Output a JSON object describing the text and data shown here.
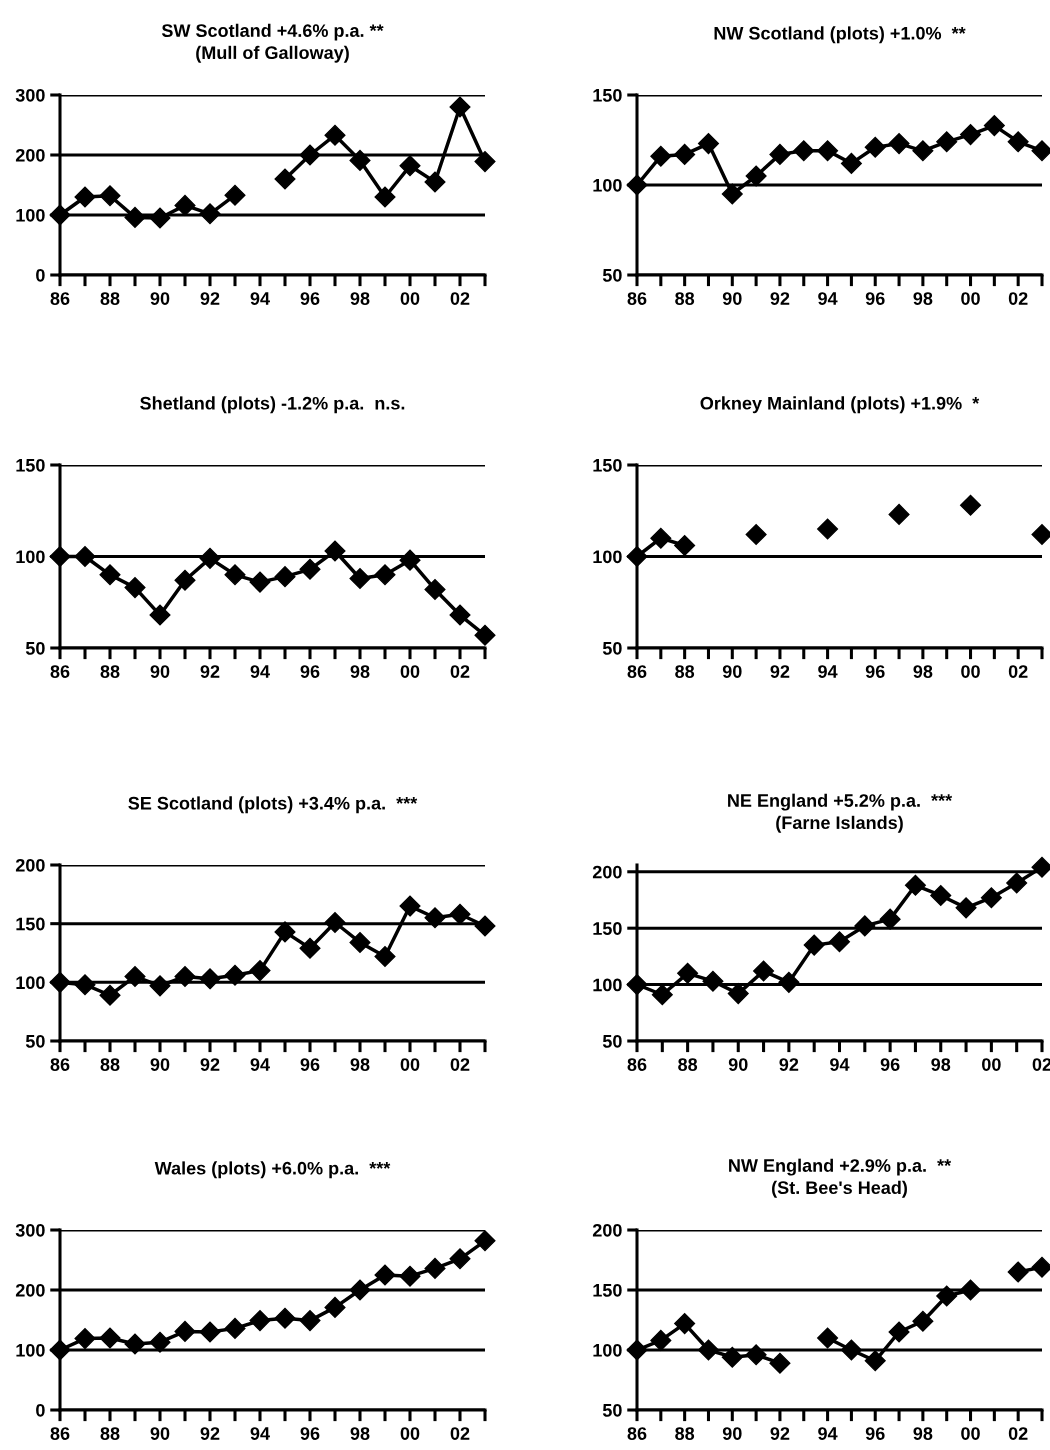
{
  "chart_data": [
    {
      "type": "line",
      "title": "SW Scotland +4.6% p.a. **\n(Mull of Galloway)",
      "x": [
        1986,
        1987,
        1988,
        1989,
        1990,
        1991,
        1992,
        1993,
        1994,
        1995,
        1996,
        1997,
        1998,
        1999,
        2000,
        2001,
        2002,
        2003
      ],
      "series": [
        {
          "color": "#000000",
          "values": [
            100,
            130,
            132,
            96,
            95,
            116,
            102,
            133,
            null,
            160,
            200,
            233,
            191,
            130,
            182,
            155,
            280,
            189
          ]
        }
      ],
      "xlim": [
        1986,
        2003
      ],
      "xticks": [
        {
          "value": 1986,
          "label": "86"
        },
        {
          "value": 1987,
          "label": null
        },
        {
          "value": 1988,
          "label": "88"
        },
        {
          "value": 1989,
          "label": null
        },
        {
          "value": 1990,
          "label": "90"
        },
        {
          "value": 1991,
          "label": null
        },
        {
          "value": 1992,
          "label": "92"
        },
        {
          "value": 1993,
          "label": null
        },
        {
          "value": 1994,
          "label": "94"
        },
        {
          "value": 1995,
          "label": null
        },
        {
          "value": 1996,
          "label": "96"
        },
        {
          "value": 1997,
          "label": null
        },
        {
          "value": 1998,
          "label": "98"
        },
        {
          "value": 1999,
          "label": null
        },
        {
          "value": 2000,
          "label": "00"
        },
        {
          "value": 2001,
          "label": null
        },
        {
          "value": 2002,
          "label": "02"
        },
        {
          "value": 2003,
          "label": null
        }
      ],
      "ylim": [
        0,
        300
      ],
      "yticks": [
        0,
        100,
        200,
        300
      ],
      "grid": "y",
      "marker": "diamond",
      "line_style": "solid"
    },
    {
      "type": "line",
      "title": "NW Scotland (plots) +1.0%  **",
      "x": [
        1986,
        1987,
        1988,
        1989,
        1990,
        1991,
        1992,
        1993,
        1994,
        1995,
        1996,
        1997,
        1998,
        1999,
        2000,
        2001,
        2002,
        2003
      ],
      "series": [
        {
          "color": "#000000",
          "values": [
            100,
            116,
            117,
            123,
            95,
            105,
            117,
            119,
            119,
            112,
            121,
            123,
            119,
            124,
            128,
            133,
            124,
            119
          ]
        }
      ],
      "xlim": [
        1986,
        2003
      ],
      "xticks": [
        {
          "value": 1986,
          "label": "86"
        },
        {
          "value": 1987,
          "label": null
        },
        {
          "value": 1988,
          "label": "88"
        },
        {
          "value": 1989,
          "label": null
        },
        {
          "value": 1990,
          "label": "90"
        },
        {
          "value": 1991,
          "label": null
        },
        {
          "value": 1992,
          "label": "92"
        },
        {
          "value": 1993,
          "label": null
        },
        {
          "value": 1994,
          "label": "94"
        },
        {
          "value": 1995,
          "label": null
        },
        {
          "value": 1996,
          "label": "96"
        },
        {
          "value": 1997,
          "label": null
        },
        {
          "value": 1998,
          "label": "98"
        },
        {
          "value": 1999,
          "label": null
        },
        {
          "value": 2000,
          "label": "00"
        },
        {
          "value": 2001,
          "label": null
        },
        {
          "value": 2002,
          "label": "02"
        },
        {
          "value": 2003,
          "label": null
        }
      ],
      "ylim": [
        50,
        150
      ],
      "yticks": [
        50,
        100,
        150
      ],
      "grid": "y",
      "marker": "diamond",
      "line_style": "solid"
    },
    {
      "type": "line",
      "title": "Shetland (plots) -1.2% p.a.  n.s.",
      "x": [
        1986,
        1987,
        1988,
        1989,
        1990,
        1991,
        1992,
        1993,
        1994,
        1995,
        1996,
        1997,
        1998,
        1999,
        2000,
        2001,
        2002,
        2003
      ],
      "series": [
        {
          "color": "#000000",
          "values": [
            100,
            100,
            90,
            83,
            68,
            87,
            99,
            90,
            86,
            89,
            93,
            103,
            88,
            90,
            98,
            82,
            68,
            57
          ]
        }
      ],
      "xlim": [
        1986,
        2003
      ],
      "xticks": [
        {
          "value": 1986,
          "label": "86"
        },
        {
          "value": 1987,
          "label": null
        },
        {
          "value": 1988,
          "label": "88"
        },
        {
          "value": 1989,
          "label": null
        },
        {
          "value": 1990,
          "label": "90"
        },
        {
          "value": 1991,
          "label": null
        },
        {
          "value": 1992,
          "label": "92"
        },
        {
          "value": 1993,
          "label": null
        },
        {
          "value": 1994,
          "label": "94"
        },
        {
          "value": 1995,
          "label": null
        },
        {
          "value": 1996,
          "label": "96"
        },
        {
          "value": 1997,
          "label": null
        },
        {
          "value": 1998,
          "label": "98"
        },
        {
          "value": 1999,
          "label": null
        },
        {
          "value": 2000,
          "label": "00"
        },
        {
          "value": 2001,
          "label": null
        },
        {
          "value": 2002,
          "label": "02"
        },
        {
          "value": 2003,
          "label": null
        }
      ],
      "ylim": [
        50,
        150
      ],
      "yticks": [
        50,
        100,
        150
      ],
      "grid": "y",
      "marker": "diamond",
      "line_style": "solid"
    },
    {
      "type": "line",
      "title": "Orkney Mainland (plots) +1.9%  *",
      "x": [
        1986,
        1987,
        1988,
        1989,
        1990,
        1991,
        1992,
        1993,
        1994,
        1995,
        1996,
        1997,
        1998,
        1999,
        2000,
        2001,
        2002,
        2003
      ],
      "series": [
        {
          "color": "#000000",
          "values": [
            100,
            110,
            106,
            null,
            null,
            112,
            null,
            null,
            115,
            null,
            null,
            123,
            null,
            null,
            128,
            null,
            null,
            112
          ]
        }
      ],
      "xlim": [
        1986,
        2003
      ],
      "xticks": [
        {
          "value": 1986,
          "label": "86"
        },
        {
          "value": 1987,
          "label": null
        },
        {
          "value": 1988,
          "label": "88"
        },
        {
          "value": 1989,
          "label": null
        },
        {
          "value": 1990,
          "label": "90"
        },
        {
          "value": 1991,
          "label": null
        },
        {
          "value": 1992,
          "label": "92"
        },
        {
          "value": 1993,
          "label": null
        },
        {
          "value": 1994,
          "label": "94"
        },
        {
          "value": 1995,
          "label": null
        },
        {
          "value": 1996,
          "label": "96"
        },
        {
          "value": 1997,
          "label": null
        },
        {
          "value": 1998,
          "label": "98"
        },
        {
          "value": 1999,
          "label": null
        },
        {
          "value": 2000,
          "label": "00"
        },
        {
          "value": 2001,
          "label": null
        },
        {
          "value": 2002,
          "label": "02"
        },
        {
          "value": 2003,
          "label": null
        }
      ],
      "ylim": [
        50,
        150
      ],
      "yticks": [
        50,
        100,
        150
      ],
      "grid": "y",
      "marker": "diamond",
      "line_style": "solid"
    },
    {
      "type": "line",
      "title": "SE Scotland (plots) +3.4% p.a.  ***",
      "x": [
        1986,
        1987,
        1988,
        1989,
        1990,
        1991,
        1992,
        1993,
        1994,
        1995,
        1996,
        1997,
        1998,
        1999,
        2000,
        2001,
        2002,
        2003
      ],
      "series": [
        {
          "color": "#000000",
          "values": [
            100,
            98,
            89,
            105,
            97,
            105,
            103,
            106,
            110,
            143,
            129,
            151,
            134,
            122,
            165,
            155,
            158,
            148
          ]
        }
      ],
      "xlim": [
        1986,
        2003
      ],
      "xticks": [
        {
          "value": 1986,
          "label": "86"
        },
        {
          "value": 1987,
          "label": null
        },
        {
          "value": 1988,
          "label": "88"
        },
        {
          "value": 1989,
          "label": null
        },
        {
          "value": 1990,
          "label": "90"
        },
        {
          "value": 1991,
          "label": null
        },
        {
          "value": 1992,
          "label": "92"
        },
        {
          "value": 1993,
          "label": null
        },
        {
          "value": 1994,
          "label": "94"
        },
        {
          "value": 1995,
          "label": null
        },
        {
          "value": 1996,
          "label": "96"
        },
        {
          "value": 1997,
          "label": null
        },
        {
          "value": 1998,
          "label": "98"
        },
        {
          "value": 1999,
          "label": null
        },
        {
          "value": 2000,
          "label": "00"
        },
        {
          "value": 2001,
          "label": null
        },
        {
          "value": 2002,
          "label": "02"
        },
        {
          "value": 2003,
          "label": null
        }
      ],
      "ylim": [
        50,
        200
      ],
      "yticks": [
        50,
        100,
        150,
        200
      ],
      "grid": "y",
      "marker": "diamond",
      "line_style": "solid"
    },
    {
      "type": "line",
      "title": "NE England +5.2% p.a.  ***\n(Farne Islands)",
      "x": [
        1986,
        1987,
        1988,
        1989,
        1990,
        1991,
        1992,
        1993,
        1994,
        1995,
        1996,
        1997,
        1998,
        1999,
        2000,
        2001,
        2002
      ],
      "series": [
        {
          "color": "#000000",
          "values": [
            100,
            91,
            110,
            103,
            92,
            112,
            102,
            135,
            138,
            152,
            158,
            188,
            179,
            168,
            177,
            190,
            204
          ]
        }
      ],
      "xlim": [
        1986,
        2002
      ],
      "xticks": [
        {
          "value": 1986,
          "label": "86"
        },
        {
          "value": 1987,
          "label": null
        },
        {
          "value": 1988,
          "label": "88"
        },
        {
          "value": 1989,
          "label": null
        },
        {
          "value": 1990,
          "label": "90"
        },
        {
          "value": 1991,
          "label": null
        },
        {
          "value": 1992,
          "label": "92"
        },
        {
          "value": 1993,
          "label": null
        },
        {
          "value": 1994,
          "label": "94"
        },
        {
          "value": 1995,
          "label": null
        },
        {
          "value": 1996,
          "label": "96"
        },
        {
          "value": 1997,
          "label": null
        },
        {
          "value": 1998,
          "label": "98"
        },
        {
          "value": 1999,
          "label": null
        },
        {
          "value": 2000,
          "label": "00"
        },
        {
          "value": 2001,
          "label": null
        },
        {
          "value": 2002,
          "label": "02"
        }
      ],
      "ylim": [
        50,
        206
      ],
      "yticks": [
        50,
        100,
        150,
        200
      ],
      "grid": "y",
      "marker": "diamond",
      "line_style": "solid"
    },
    {
      "type": "line",
      "title": "Wales (plots) +6.0% p.a.  ***",
      "x": [
        1986,
        1987,
        1988,
        1989,
        1990,
        1991,
        1992,
        1993,
        1994,
        1995,
        1996,
        1997,
        1998,
        1999,
        2000,
        2001,
        2002,
        2003
      ],
      "series": [
        {
          "color": "#000000",
          "values": [
            100,
            119,
            120,
            110,
            113,
            131,
            130,
            136,
            149,
            153,
            149,
            171,
            200,
            225,
            223,
            236,
            252,
            282
          ]
        }
      ],
      "xlim": [
        1986,
        2003
      ],
      "xticks": [
        {
          "value": 1986,
          "label": "86"
        },
        {
          "value": 1987,
          "label": null
        },
        {
          "value": 1988,
          "label": "88"
        },
        {
          "value": 1989,
          "label": null
        },
        {
          "value": 1990,
          "label": "90"
        },
        {
          "value": 1991,
          "label": null
        },
        {
          "value": 1992,
          "label": "92"
        },
        {
          "value": 1993,
          "label": null
        },
        {
          "value": 1994,
          "label": "94"
        },
        {
          "value": 1995,
          "label": null
        },
        {
          "value": 1996,
          "label": "96"
        },
        {
          "value": 1997,
          "label": null
        },
        {
          "value": 1998,
          "label": "98"
        },
        {
          "value": 1999,
          "label": null
        },
        {
          "value": 2000,
          "label": "00"
        },
        {
          "value": 2001,
          "label": null
        },
        {
          "value": 2002,
          "label": "02"
        },
        {
          "value": 2003,
          "label": null
        }
      ],
      "ylim": [
        0,
        300
      ],
      "yticks": [
        0,
        100,
        200,
        300
      ],
      "grid": "y",
      "marker": "diamond",
      "line_style": "solid"
    },
    {
      "type": "line",
      "title": "NW England +2.9% p.a.  **\n(St. Bee's Head)",
      "x": [
        1986,
        1987,
        1988,
        1989,
        1990,
        1991,
        1992,
        1993,
        1994,
        1995,
        1996,
        1997,
        1998,
        1999,
        2000,
        2001,
        2002,
        2003
      ],
      "series": [
        {
          "color": "#000000",
          "values": [
            100,
            108,
            122,
            100,
            94,
            96,
            89,
            null,
            110,
            100,
            91,
            115,
            124,
            145,
            150,
            null,
            165,
            169
          ]
        }
      ],
      "xlim": [
        1986,
        2003
      ],
      "xticks": [
        {
          "value": 1986,
          "label": "86"
        },
        {
          "value": 1987,
          "label": null
        },
        {
          "value": 1988,
          "label": "88"
        },
        {
          "value": 1989,
          "label": null
        },
        {
          "value": 1990,
          "label": "90"
        },
        {
          "value": 1991,
          "label": null
        },
        {
          "value": 1992,
          "label": "92"
        },
        {
          "value": 1993,
          "label": null
        },
        {
          "value": 1994,
          "label": "94"
        },
        {
          "value": 1995,
          "label": null
        },
        {
          "value": 1996,
          "label": "96"
        },
        {
          "value": 1997,
          "label": null
        },
        {
          "value": 1998,
          "label": "98"
        },
        {
          "value": 1999,
          "label": null
        },
        {
          "value": 2000,
          "label": "00"
        },
        {
          "value": 2001,
          "label": null
        },
        {
          "value": 2002,
          "label": "02"
        },
        {
          "value": 2003,
          "label": null
        }
      ],
      "ylim": [
        50,
        200
      ],
      "yticks": [
        50,
        100,
        150,
        200
      ],
      "grid": "y",
      "marker": "diamond",
      "line_style": "solid"
    }
  ]
}
